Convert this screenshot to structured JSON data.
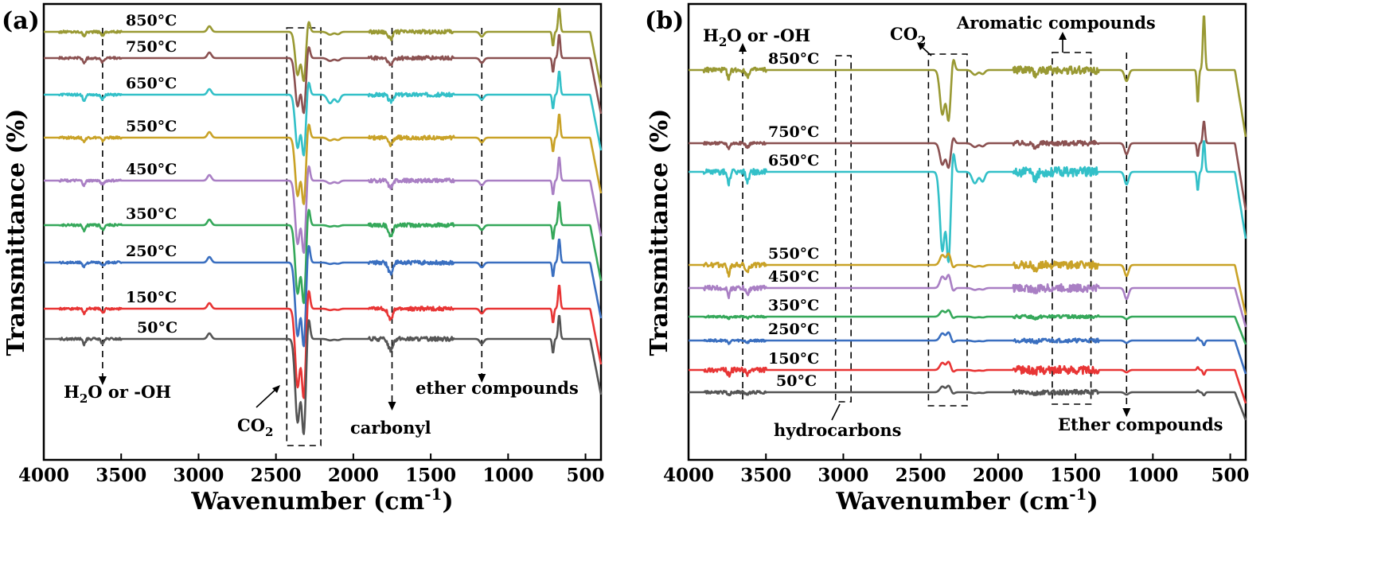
{
  "chart_data": [
    {
      "panel_label": "(a)",
      "type": "line",
      "xlabel": "Wavenumber (cm⁻¹)",
      "ylabel": "Transmittance (%)",
      "xlim": [
        4000,
        400
      ],
      "x_reversed": true,
      "xticks": [
        "4000",
        "3500",
        "3000",
        "2500",
        "2000",
        "1500",
        "1000",
        "500"
      ],
      "y_tick_labels": false,
      "legend": "none (series labelled inline at left)",
      "series": [
        {
          "name": "850°C",
          "color": "#999933"
        },
        {
          "name": "750°C",
          "color": "#8b5151"
        },
        {
          "name": "650°C",
          "color": "#33c0c8"
        },
        {
          "name": "550°C",
          "color": "#c9a227"
        },
        {
          "name": "450°C",
          "color": "#a97fc4"
        },
        {
          "name": "350°C",
          "color": "#35a85a"
        },
        {
          "name": "250°C",
          "color": "#3a6fc0"
        },
        {
          "name": "150°C",
          "color": "#e83535"
        },
        {
          "name": "50°C",
          "color": "#555555"
        }
      ],
      "annotations": [
        {
          "text": "H₂O or -OH",
          "x": 3620
        },
        {
          "text": "CO₂",
          "x_range": [
            2430,
            2210
          ]
        },
        {
          "text": "carbonyl",
          "x": 1750
        },
        {
          "text": "ether compounds",
          "x": 1170
        }
      ]
    },
    {
      "panel_label": "(b)",
      "type": "line",
      "xlabel": "Wavenumber (cm⁻¹)",
      "ylabel": "Transmittance (%)",
      "xlim": [
        4000,
        400
      ],
      "x_reversed": true,
      "xticks": [
        "4000",
        "3500",
        "3000",
        "2500",
        "2000",
        "1500",
        "1000",
        "500"
      ],
      "y_tick_labels": false,
      "legend": "none (series labelled inline at left)",
      "series": [
        {
          "name": "850°C",
          "color": "#999933"
        },
        {
          "name": "750°C",
          "color": "#8b5151"
        },
        {
          "name": "650°C",
          "color": "#33c0c8"
        },
        {
          "name": "550°C",
          "color": "#c9a227"
        },
        {
          "name": "450°C",
          "color": "#a97fc4"
        },
        {
          "name": "350°C",
          "color": "#35a85a"
        },
        {
          "name": "250°C",
          "color": "#3a6fc0"
        },
        {
          "name": "150°C",
          "color": "#e83535"
        },
        {
          "name": "50°C",
          "color": "#555555"
        }
      ],
      "annotations": [
        {
          "text": "H₂O or -OH",
          "x": 3650
        },
        {
          "text": "hydrocarbons",
          "x_range": [
            3050,
            2950
          ]
        },
        {
          "text": "CO₂",
          "x_range": [
            2450,
            2200
          ]
        },
        {
          "text": "Aromatic compounds",
          "x_range": [
            1650,
            1400
          ]
        },
        {
          "text": "Ether compounds",
          "x": 1170
        }
      ]
    }
  ]
}
